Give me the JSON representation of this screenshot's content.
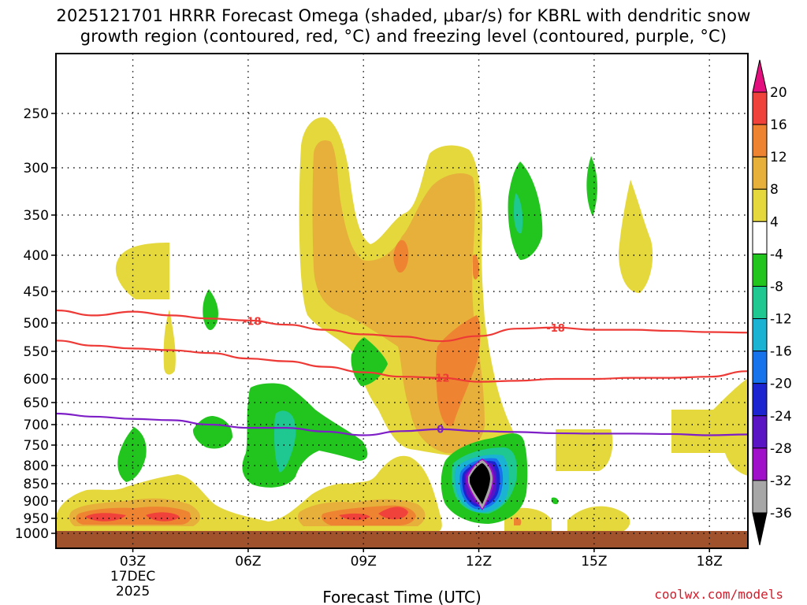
{
  "title_line1": "2025121701 HRRR Forecast Omega (shaded, μbar/s) for KBRL with dendritic snow",
  "title_line2": "growth region (contoured, red, °C) and freezing level (contoured, purple, °C)",
  "watermark": "coolwx.com/models",
  "chart_data": {
    "type": "heatmap",
    "title": "2025121701 HRRR Forecast Omega (shaded, μbar/s) for KBRL with dendritic snow growth region (contoured, red, °C) and freezing level (contoured, purple, °C)",
    "xlabel": "Forecast Time (UTC)",
    "ylabel": "",
    "x_range_hours_utc": [
      1,
      19
    ],
    "x_ticks": [
      {
        "hour": 3,
        "label": "03Z",
        "sub1": "17DEC",
        "sub2": "2025"
      },
      {
        "hour": 6,
        "label": "06Z"
      },
      {
        "hour": 9,
        "label": "09Z"
      },
      {
        "hour": 12,
        "label": "12Z"
      },
      {
        "hour": 15,
        "label": "15Z"
      },
      {
        "hour": 18,
        "label": "18Z"
      }
    ],
    "y_axis": "pressure (mb), reversed",
    "y_ticks": [
      250,
      300,
      350,
      400,
      450,
      500,
      550,
      600,
      650,
      700,
      750,
      800,
      850,
      900,
      950,
      1000
    ],
    "ground_level_mb": 990,
    "colorbar": {
      "levels": [
        20,
        16,
        12,
        8,
        4,
        -4,
        -8,
        -12,
        -16,
        -20,
        -24,
        -28,
        -32,
        -36
      ],
      "colors": [
        "#e40f7e",
        "#f0413a",
        "#ee8431",
        "#e6b03b",
        "#e4d83d",
        "#ffffff",
        "#22c51d",
        "#1ec890",
        "#1ab3d4",
        "#1673ec",
        "#1c24d2",
        "#5a14c4",
        "#a00fc9",
        "#a7a7a7",
        "#000000"
      ]
    },
    "contours": [
      {
        "name": "-18°C isotherm",
        "color": "#ee3a36",
        "label": "-18",
        "points": [
          [
            1,
            480
          ],
          [
            2,
            488
          ],
          [
            3,
            482
          ],
          [
            4,
            488
          ],
          [
            5,
            493
          ],
          [
            6,
            496
          ],
          [
            7,
            503
          ],
          [
            8,
            512
          ],
          [
            9,
            520
          ],
          [
            10,
            524
          ],
          [
            11,
            532
          ],
          [
            12,
            523
          ],
          [
            13,
            510
          ],
          [
            14,
            508
          ],
          [
            15,
            512
          ],
          [
            16,
            512
          ],
          [
            17,
            514
          ],
          [
            18,
            516
          ],
          [
            19,
            517
          ]
        ]
      },
      {
        "name": "-12°C isotherm",
        "color": "#ee3a36",
        "label": "-12",
        "points": [
          [
            1,
            531
          ],
          [
            2,
            540
          ],
          [
            3,
            545
          ],
          [
            4,
            548
          ],
          [
            5,
            553
          ],
          [
            6,
            563
          ],
          [
            7,
            568
          ],
          [
            8,
            578
          ],
          [
            9,
            588
          ],
          [
            10,
            596
          ],
          [
            11,
            598
          ],
          [
            12,
            606
          ],
          [
            13,
            604
          ],
          [
            14,
            600
          ],
          [
            15,
            600
          ],
          [
            16,
            598
          ],
          [
            17,
            598
          ],
          [
            18,
            596
          ],
          [
            19,
            586
          ]
        ]
      },
      {
        "name": "freezing level (0°C)",
        "color": "#7d1ec6",
        "label": "0",
        "points": [
          [
            1,
            675
          ],
          [
            2,
            682
          ],
          [
            3,
            687
          ],
          [
            4,
            690
          ],
          [
            5,
            700
          ],
          [
            6,
            708
          ],
          [
            7,
            708
          ],
          [
            8,
            717
          ],
          [
            9,
            726
          ],
          [
            10,
            716
          ],
          [
            11,
            711
          ],
          [
            12,
            716
          ],
          [
            13,
            718
          ],
          [
            14,
            721
          ],
          [
            15,
            722
          ],
          [
            16,
            722
          ],
          [
            17,
            723
          ],
          [
            18,
            726
          ],
          [
            19,
            724
          ]
        ]
      }
    ],
    "shaded_regions": [
      {
        "level": "4 to 8",
        "region": "upper ascent plume 08Z-11Z, 260-700 mb"
      },
      {
        "level": "8 to 12",
        "region": "core of plume 08Z-12Z, 300-750 mb"
      },
      {
        "level": "12 to 16",
        "region": "low-level maxima near 02Z-04Z and 09Z-10Z at 950 mb"
      },
      {
        "level": "-32 to -36 and below",
        "region": "strong subsidence centered 12Z near 850 mb"
      },
      {
        "level": "-4 to -8",
        "region": "scattered weak descent areas 02Z-14Z"
      }
    ]
  }
}
